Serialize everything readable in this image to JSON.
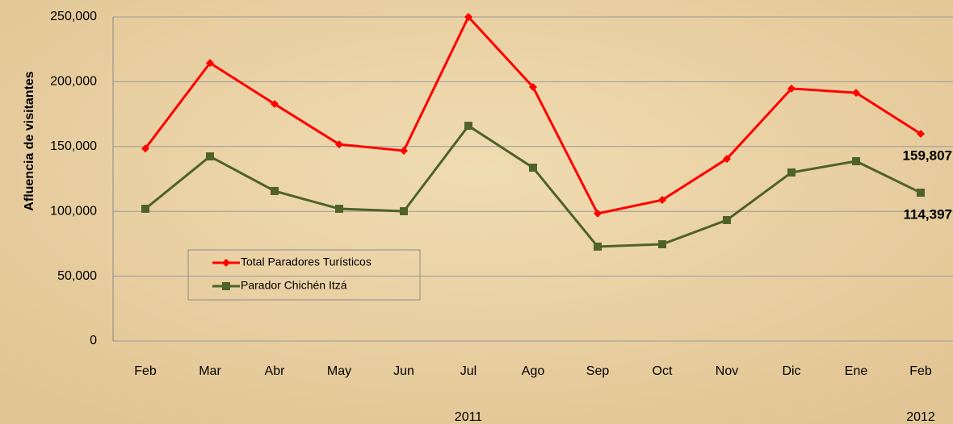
{
  "chart_data": {
    "type": "line",
    "y_label": "Afluencia de visitantes",
    "categories": [
      "Feb",
      "Mar",
      "Abr",
      "May",
      "Jun",
      "Jul",
      "Ago",
      "Sep",
      "Oct",
      "Nov",
      "Dic",
      "Ene",
      "Feb"
    ],
    "x_groups": [
      "2011",
      "2012"
    ],
    "series": [
      {
        "name": "Total Paradores Turísticos",
        "color": "#ff0000",
        "marker": "diamond",
        "values": [
          148500,
          214500,
          182800,
          151700,
          146800,
          250000,
          195900,
          98300,
          108800,
          140500,
          194700,
          191500,
          159807
        ],
        "value_labels": [
          null,
          null,
          null,
          null,
          null,
          null,
          null,
          null,
          null,
          null,
          null,
          null,
          "159,807"
        ]
      },
      {
        "name": "Parador Chichén Itzá",
        "color": "#4f6228",
        "marker": "square",
        "values": [
          102000,
          142400,
          115700,
          102000,
          100100,
          166000,
          133700,
          72800,
          74600,
          93300,
          130000,
          138700,
          114397
        ],
        "value_labels": [
          null,
          null,
          null,
          null,
          null,
          null,
          null,
          null,
          null,
          null,
          null,
          null,
          "114,397"
        ]
      }
    ],
    "ylim": [
      0,
      250000
    ],
    "yticks": [
      0,
      {
        "value": 50000,
        "label": "50,000"
      },
      {
        "value": 100000,
        "label": "100,000"
      },
      {
        "value": 150000,
        "label": "150,000"
      },
      {
        "value": 200000,
        "label": "200,000"
      },
      {
        "value": 250000,
        "label": "250,000"
      }
    ],
    "grid": true
  }
}
